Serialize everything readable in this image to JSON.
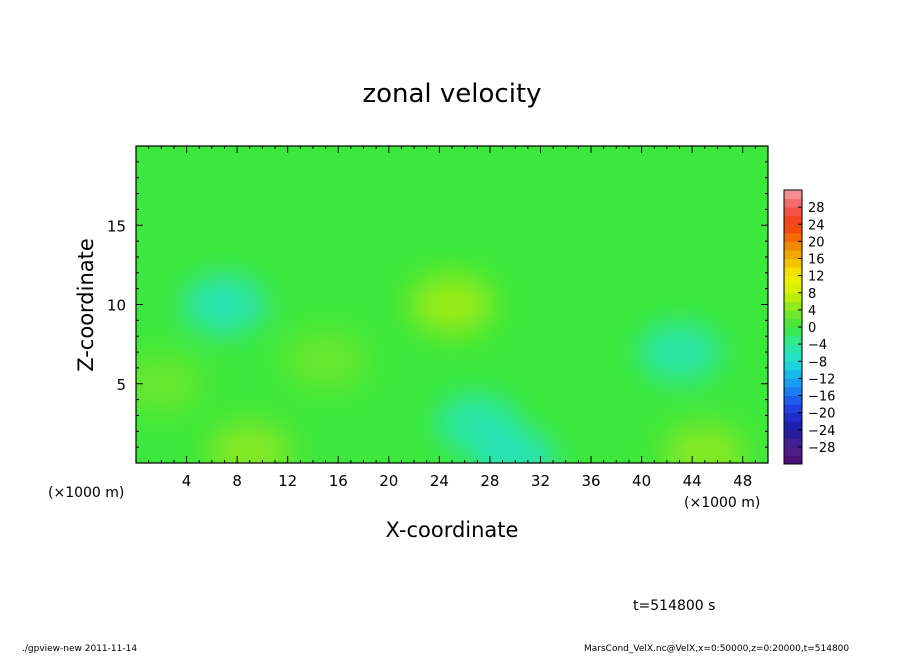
{
  "chart_data": {
    "type": "heatmap",
    "title": "zonal velocity",
    "xlabel": "X-coordinate",
    "ylabel": "Z-coordinate",
    "x_unit_label": "(×1000 m)",
    "x_unit_label_right": "(×1000 m)",
    "xlim": [
      0,
      50
    ],
    "ylim": [
      0,
      20
    ],
    "x_ticks": [
      4,
      8,
      12,
      16,
      20,
      24,
      28,
      32,
      36,
      40,
      44,
      48
    ],
    "y_ticks": [
      5,
      10,
      15
    ],
    "grid": false,
    "colorbar": {
      "levels": [
        -32,
        -30,
        -28,
        -26,
        -24,
        -22,
        -20,
        -18,
        -16,
        -14,
        -12,
        -10,
        -8,
        -6,
        -4,
        -2,
        0,
        2,
        4,
        6,
        8,
        10,
        12,
        14,
        16,
        18,
        20,
        22,
        24,
        26,
        28,
        30,
        32
      ],
      "labels": [
        "28",
        "24",
        "20",
        "16",
        "12",
        "8",
        "4",
        "0",
        "−4",
        "−8",
        "−12",
        "−16",
        "−20",
        "−24",
        "−28"
      ],
      "label_values": [
        28,
        24,
        20,
        16,
        12,
        8,
        4,
        0,
        -4,
        -8,
        -12,
        -16,
        -20,
        -24,
        -28
      ]
    },
    "features": [
      {
        "x": 25,
        "z": 10,
        "value": 6
      },
      {
        "x": 15,
        "z": 6.5,
        "value": 3
      },
      {
        "x": 7,
        "z": 10,
        "value": -7
      },
      {
        "x": 43,
        "z": 7,
        "value": -6
      },
      {
        "x": 27,
        "z": 2.5,
        "value": -6
      },
      {
        "x": 9,
        "z": 0.7,
        "value": 5
      },
      {
        "x": 45,
        "z": 0.6,
        "value": 5
      },
      {
        "x": 30,
        "z": 0.3,
        "value": -7
      },
      {
        "x": 2,
        "z": 5,
        "value": 3
      }
    ],
    "background_value": 0
  },
  "annotations": {
    "time": "t=514800 s",
    "footer_left": "./gpview-new  2011-11-14",
    "footer_right": "MarsCond_VelX.nc@VelX,x=0:50000,z=0:20000,t=514800"
  }
}
